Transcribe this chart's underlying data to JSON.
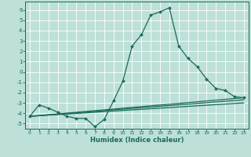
{
  "title": "",
  "xlabel": "Humidex (Indice chaleur)",
  "bg_color": "#bde0d8",
  "grid_color": "#ffffff",
  "line_color": "#1a6b5a",
  "xlim": [
    -0.5,
    23.5
  ],
  "ylim": [
    -5.5,
    6.8
  ],
  "yticks": [
    -5,
    -4,
    -3,
    -2,
    -1,
    0,
    1,
    2,
    3,
    4,
    5,
    6
  ],
  "xticks": [
    0,
    1,
    2,
    3,
    4,
    5,
    6,
    7,
    8,
    9,
    10,
    11,
    12,
    13,
    14,
    15,
    16,
    17,
    18,
    19,
    20,
    21,
    22,
    23
  ],
  "line1_x": [
    0,
    1,
    2,
    3,
    4,
    5,
    6,
    7,
    8,
    9,
    10,
    11,
    12,
    13,
    14,
    15,
    16,
    17,
    18,
    19,
    20,
    21,
    22,
    23
  ],
  "line1_y": [
    -4.3,
    -3.2,
    -3.5,
    -3.9,
    -4.3,
    -4.5,
    -4.5,
    -5.3,
    -4.6,
    -2.8,
    -0.9,
    2.5,
    3.6,
    5.5,
    5.8,
    6.2,
    2.5,
    1.3,
    0.5,
    -0.7,
    -1.6,
    -1.8,
    -2.4,
    -2.5
  ],
  "line2_x": [
    0,
    23
  ],
  "line2_y": [
    -4.3,
    -2.5
  ],
  "line3_x": [
    0,
    23
  ],
  "line3_y": [
    -4.3,
    -2.7
  ],
  "line4_x": [
    0,
    23
  ],
  "line4_y": [
    -4.3,
    -3.0
  ]
}
